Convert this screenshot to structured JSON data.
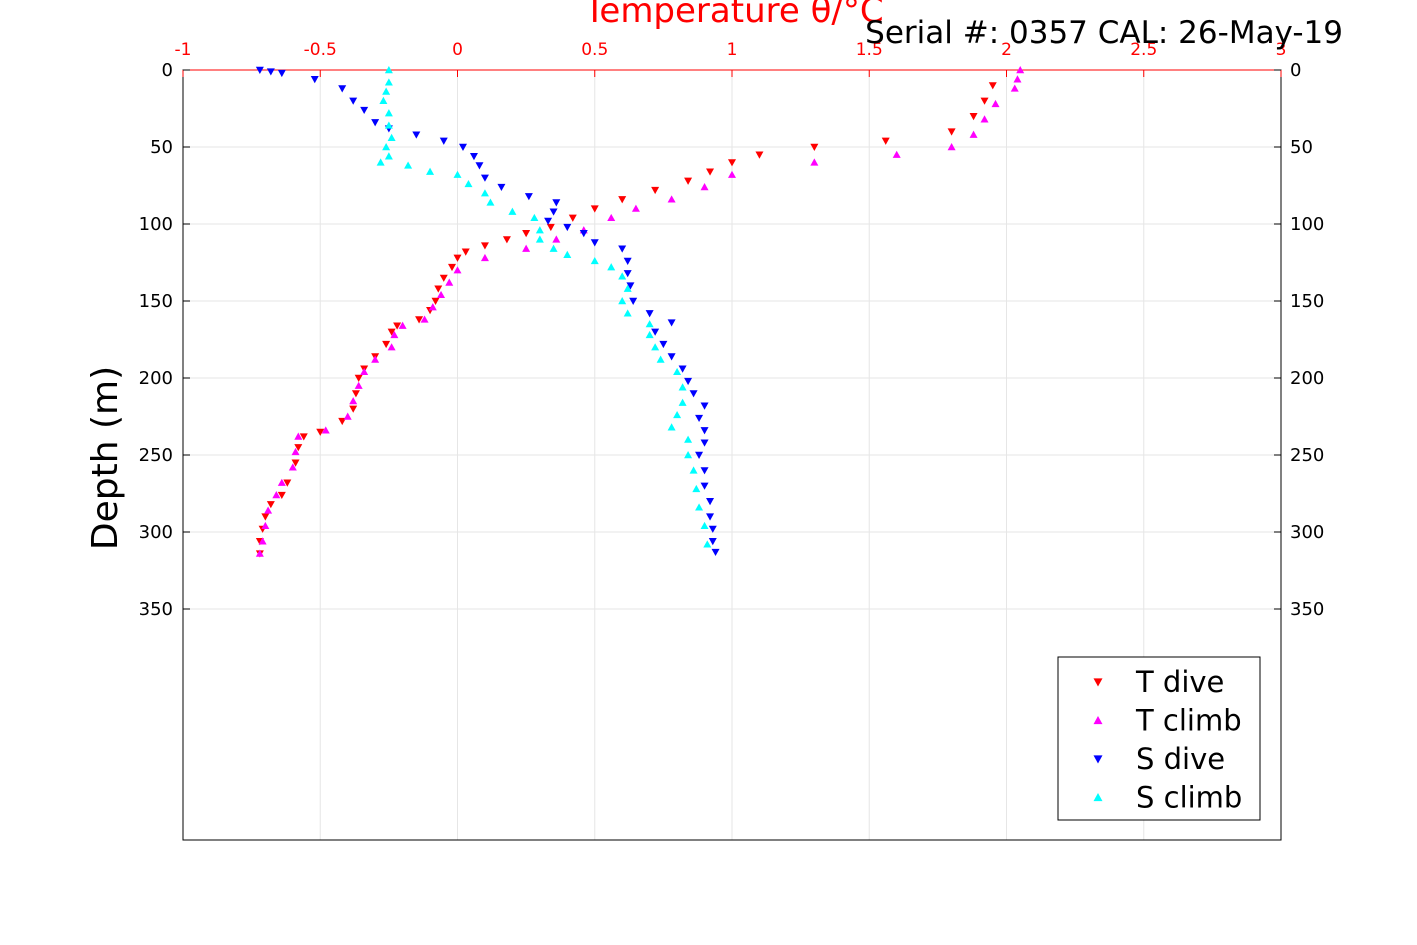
{
  "serial_text": "Serial #: 0357  CAL: 26-May-19",
  "chart_data": {
    "type": "scatter",
    "title": "Temperature θ/°C",
    "xlabel_top": "Temperature θ/°C",
    "ylabel": "Depth (m)",
    "xlim": [
      -1,
      3
    ],
    "ylim": [
      0,
      500
    ],
    "y_reversed": true,
    "x_ticks": [
      -1,
      -0.5,
      0,
      0.5,
      1,
      1.5,
      2,
      2.5,
      3
    ],
    "x_tick_labels": [
      "-1",
      "-0.5",
      "0",
      "0.5",
      "1",
      "1.5",
      "2",
      "2.5",
      "3"
    ],
    "y_ticks": [
      0,
      50,
      100,
      150,
      200,
      250,
      300,
      350
    ],
    "y_tick_labels": [
      "0",
      "50",
      "100",
      "150",
      "200",
      "250",
      "300",
      "350"
    ],
    "grid": true,
    "legend_position": "bottom-right",
    "series": [
      {
        "name": "T dive",
        "marker": "triangle-down",
        "color": "#ff0000",
        "points": [
          [
            1.95,
            10
          ],
          [
            1.92,
            20
          ],
          [
            1.88,
            30
          ],
          [
            1.8,
            40
          ],
          [
            1.56,
            46
          ],
          [
            1.3,
            50
          ],
          [
            1.1,
            55
          ],
          [
            1.0,
            60
          ],
          [
            0.92,
            66
          ],
          [
            0.84,
            72
          ],
          [
            0.72,
            78
          ],
          [
            0.6,
            84
          ],
          [
            0.5,
            90
          ],
          [
            0.42,
            96
          ],
          [
            0.34,
            102
          ],
          [
            0.25,
            106
          ],
          [
            0.18,
            110
          ],
          [
            0.1,
            114
          ],
          [
            0.03,
            118
          ],
          [
            0.0,
            122
          ],
          [
            -0.02,
            128
          ],
          [
            -0.05,
            135
          ],
          [
            -0.07,
            142
          ],
          [
            -0.08,
            150
          ],
          [
            -0.1,
            156
          ],
          [
            -0.14,
            162
          ],
          [
            -0.22,
            166
          ],
          [
            -0.24,
            170
          ],
          [
            -0.26,
            178
          ],
          [
            -0.3,
            186
          ],
          [
            -0.34,
            194
          ],
          [
            -0.36,
            200
          ],
          [
            -0.37,
            210
          ],
          [
            -0.38,
            220
          ],
          [
            -0.42,
            228
          ],
          [
            -0.5,
            235
          ],
          [
            -0.56,
            238
          ],
          [
            -0.58,
            245
          ],
          [
            -0.59,
            255
          ],
          [
            -0.62,
            268
          ],
          [
            -0.64,
            276
          ],
          [
            -0.68,
            282
          ],
          [
            -0.7,
            290
          ],
          [
            -0.71,
            298
          ],
          [
            -0.72,
            306
          ],
          [
            -0.72,
            314
          ]
        ]
      },
      {
        "name": "T climb",
        "marker": "triangle-up",
        "color": "#ff00ff",
        "points": [
          [
            2.05,
            0
          ],
          [
            2.04,
            6
          ],
          [
            2.03,
            12
          ],
          [
            1.96,
            22
          ],
          [
            1.92,
            32
          ],
          [
            1.88,
            42
          ],
          [
            1.8,
            50
          ],
          [
            1.6,
            55
          ],
          [
            1.3,
            60
          ],
          [
            1.0,
            68
          ],
          [
            0.9,
            76
          ],
          [
            0.78,
            84
          ],
          [
            0.65,
            90
          ],
          [
            0.56,
            96
          ],
          [
            0.46,
            104
          ],
          [
            0.36,
            110
          ],
          [
            0.25,
            116
          ],
          [
            0.1,
            122
          ],
          [
            0.0,
            130
          ],
          [
            -0.03,
            138
          ],
          [
            -0.06,
            146
          ],
          [
            -0.09,
            154
          ],
          [
            -0.12,
            162
          ],
          [
            -0.2,
            166
          ],
          [
            -0.23,
            172
          ],
          [
            -0.24,
            180
          ],
          [
            -0.3,
            188
          ],
          [
            -0.34,
            196
          ],
          [
            -0.36,
            205
          ],
          [
            -0.38,
            215
          ],
          [
            -0.4,
            225
          ],
          [
            -0.48,
            234
          ],
          [
            -0.58,
            238
          ],
          [
            -0.59,
            248
          ],
          [
            -0.6,
            258
          ],
          [
            -0.64,
            268
          ],
          [
            -0.66,
            276
          ],
          [
            -0.69,
            286
          ],
          [
            -0.7,
            296
          ],
          [
            -0.71,
            306
          ],
          [
            -0.72,
            314
          ]
        ]
      },
      {
        "name": "S dive",
        "marker": "triangle-down",
        "color": "#0000ff",
        "points": [
          [
            -0.72,
            0
          ],
          [
            -0.68,
            1
          ],
          [
            -0.64,
            2
          ],
          [
            -0.52,
            6
          ],
          [
            -0.42,
            12
          ],
          [
            -0.38,
            20
          ],
          [
            -0.34,
            26
          ],
          [
            -0.3,
            34
          ],
          [
            -0.25,
            38
          ],
          [
            -0.15,
            42
          ],
          [
            -0.05,
            46
          ],
          [
            0.02,
            50
          ],
          [
            0.06,
            56
          ],
          [
            0.08,
            62
          ],
          [
            0.1,
            70
          ],
          [
            0.16,
            76
          ],
          [
            0.26,
            82
          ],
          [
            0.36,
            86
          ],
          [
            0.35,
            92
          ],
          [
            0.33,
            98
          ],
          [
            0.4,
            102
          ],
          [
            0.46,
            106
          ],
          [
            0.5,
            112
          ],
          [
            0.6,
            116
          ],
          [
            0.62,
            124
          ],
          [
            0.62,
            132
          ],
          [
            0.63,
            140
          ],
          [
            0.64,
            150
          ],
          [
            0.7,
            158
          ],
          [
            0.78,
            164
          ],
          [
            0.72,
            170
          ],
          [
            0.75,
            178
          ],
          [
            0.78,
            186
          ],
          [
            0.82,
            194
          ],
          [
            0.84,
            202
          ],
          [
            0.86,
            210
          ],
          [
            0.9,
            218
          ],
          [
            0.88,
            226
          ],
          [
            0.9,
            234
          ],
          [
            0.9,
            242
          ],
          [
            0.88,
            250
          ],
          [
            0.9,
            260
          ],
          [
            0.9,
            270
          ],
          [
            0.92,
            280
          ],
          [
            0.92,
            290
          ],
          [
            0.93,
            298
          ],
          [
            0.93,
            306
          ],
          [
            0.94,
            313
          ]
        ]
      },
      {
        "name": "S climb",
        "marker": "triangle-up",
        "color": "#00ffff",
        "points": [
          [
            -0.25,
            0
          ],
          [
            -0.25,
            8
          ],
          [
            -0.26,
            14
          ],
          [
            -0.27,
            20
          ],
          [
            -0.25,
            28
          ],
          [
            -0.25,
            36
          ],
          [
            -0.24,
            44
          ],
          [
            -0.26,
            50
          ],
          [
            -0.25,
            56
          ],
          [
            -0.28,
            60
          ],
          [
            -0.18,
            62
          ],
          [
            -0.1,
            66
          ],
          [
            0.0,
            68
          ],
          [
            0.04,
            74
          ],
          [
            0.1,
            80
          ],
          [
            0.12,
            86
          ],
          [
            0.2,
            92
          ],
          [
            0.28,
            96
          ],
          [
            0.3,
            104
          ],
          [
            0.3,
            110
          ],
          [
            0.35,
            116
          ],
          [
            0.4,
            120
          ],
          [
            0.5,
            124
          ],
          [
            0.56,
            128
          ],
          [
            0.6,
            134
          ],
          [
            0.62,
            142
          ],
          [
            0.6,
            150
          ],
          [
            0.62,
            158
          ],
          [
            0.7,
            165
          ],
          [
            0.7,
            172
          ],
          [
            0.72,
            180
          ],
          [
            0.74,
            188
          ],
          [
            0.8,
            196
          ],
          [
            0.82,
            206
          ],
          [
            0.82,
            216
          ],
          [
            0.8,
            224
          ],
          [
            0.78,
            232
          ],
          [
            0.84,
            240
          ],
          [
            0.84,
            250
          ],
          [
            0.86,
            260
          ],
          [
            0.87,
            272
          ],
          [
            0.88,
            284
          ],
          [
            0.9,
            296
          ],
          [
            0.91,
            308
          ]
        ]
      }
    ]
  }
}
